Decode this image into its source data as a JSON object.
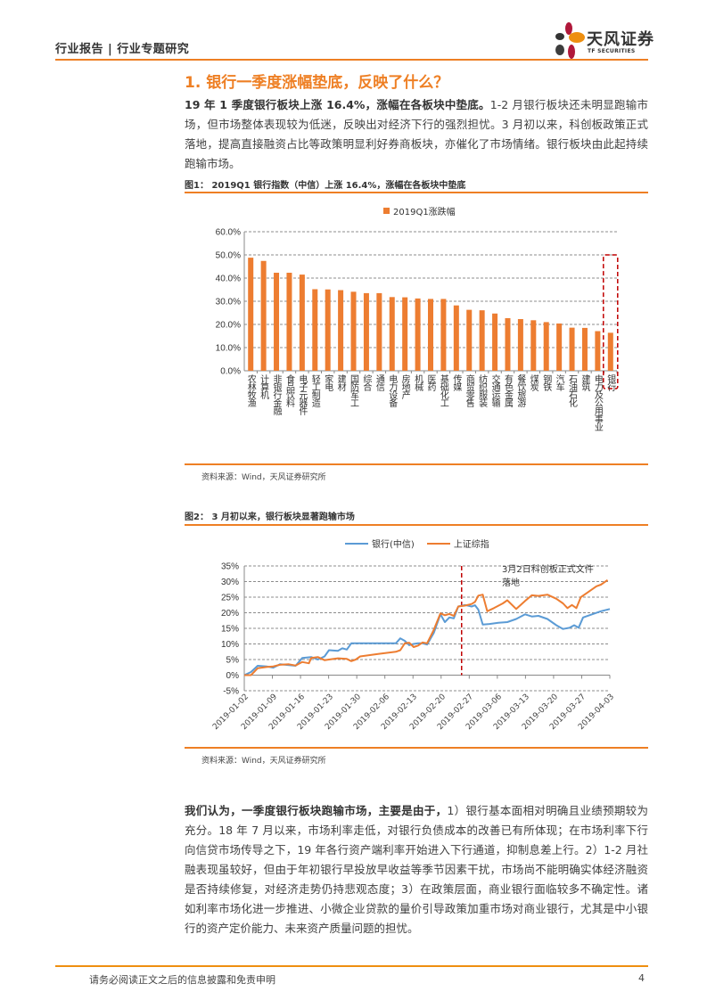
{
  "header": {
    "report_type": "行业报告 | 行业专题研究",
    "logo_cn": "天风证券",
    "logo_en": "TF SECURITIES"
  },
  "section": {
    "title": "1. 银行一季度涨幅垫底，反映了什么？",
    "para1_bold": "19 年 1 季度银行板块上涨 16.4%，涨幅在各板块中垫底。",
    "para1_rest": "1-2 月银行板块还未明显跑输市场，但市场整体表现较为低迷，反映出对经济下行的强烈担忧。3 月初以来，科创板政策正式落地，提高直接融资占比等政策明显利好券商板块，亦催化了市场情绪。银行板块由此起持续跑输市场。",
    "para2_bold": "我们认为，一季度银行板块跑输市场，主要是由于，",
    "para2_rest": "1）银行基本面相对明确且业绩预期较为充分。18 年 7 月以来，市场利率走低，对银行负债成本的改善已有所体现；在市场利率下行向信贷市场传导之下，19 年各行资产端利率开始进入下行通道，抑制息差上行。2）1-2 月社融表现虽较好，但由于年初银行早投放早收益等季节因素干扰，市场尚不能明确实体经济融资是否持续修复，对经济走势仍持悲观态度；3）在政策层面，商业银行面临较多不确定性。诸如利率市场化进一步推进、小微企业贷款的量价引导政策加重市场对商业银行，尤其是中小银行的资产定价能力、未来资产质量问题的担忧。"
  },
  "figure1": {
    "title": "图1： 2019Q1 银行指数（中信）上涨 16.4%，涨幅在各板块中垫底",
    "source": "资料来源：Wind，天风证券研究所"
  },
  "figure2": {
    "title": "图2： 3 月初以来，银行板块显著跑输市场",
    "annotation_line1": "3月2日科创板正式文件",
    "annotation_line2": "落地",
    "source": "资料来源：Wind，天风证券研究所"
  },
  "colors": {
    "accent": "#ee7f24",
    "bank_line": "#5b9bd5",
    "index_line": "#ed7d31",
    "highlight_box": "#c00000"
  },
  "chart_data": [
    {
      "type": "bar",
      "title": "2019Q1 银行指数（中信）上涨 16.4%，涨幅在各板块中垫底",
      "legend": [
        "2019Q1涨跌幅"
      ],
      "legend_position": "top",
      "ylim": [
        0,
        60
      ],
      "yticks": [
        "0.0%",
        "10.0%",
        "20.0%",
        "30.0%",
        "40.0%",
        "50.0%",
        "60.0%"
      ],
      "grid": true,
      "categories": [
        "农林牧渔",
        "计算机",
        "非银行金融",
        "食品饮料",
        "电子元器件",
        "轻工制造",
        "家电",
        "建材",
        "国防军工",
        "综合",
        "通信",
        "电力设备",
        "房地产",
        "机械",
        "医药",
        "基础化工",
        "传媒",
        "商贸零售",
        "纺织服装",
        "交通运输",
        "有色金属",
        "餐饮旅游",
        "煤炭",
        "钢铁",
        "汽车",
        "石油石化",
        "建筑",
        "电力及公用事业",
        "银行"
      ],
      "values": [
        48.8,
        47.4,
        42.3,
        42.3,
        41.5,
        35.2,
        35.1,
        34.8,
        34.1,
        33.5,
        33.5,
        31.8,
        31.7,
        31.2,
        31.0,
        31.0,
        28.2,
        26.3,
        26.1,
        24.7,
        22.7,
        22.3,
        21.8,
        21.0,
        20.4,
        18.6,
        18.5,
        17.1,
        16.4
      ],
      "highlight": "银行"
    },
    {
      "type": "line",
      "title": "3 月初以来，银行板块显著跑输市场",
      "ylim": [
        -5,
        35
      ],
      "yticks": [
        "-5%",
        "0%",
        "5%",
        "10%",
        "15%",
        "20%",
        "25%",
        "30%",
        "35%"
      ],
      "grid": true,
      "legend_position": "top",
      "x_ticks": [
        "2019-01-02",
        "2019-01-09",
        "2019-01-16",
        "2019-01-23",
        "2019-01-30",
        "2019-02-06",
        "2019-02-13",
        "2019-02-20",
        "2019-02-27",
        "2019-03-06",
        "2019-03-13",
        "2019-03-20",
        "2019-03-27",
        "2019-04-03"
      ],
      "vline": {
        "date": "2019-03-02",
        "label": "3月2日科创板正式文件落地"
      },
      "series": [
        {
          "name": "银行(中信)",
          "color": "#5b9bd5",
          "points": [
            [
              0,
              0
            ],
            [
              0.3,
              1.0
            ],
            [
              0.6,
              3.0
            ],
            [
              1.0,
              2.8
            ],
            [
              1.3,
              2.4
            ],
            [
              1.6,
              3.5
            ],
            [
              2.0,
              3.2
            ],
            [
              2.3,
              3.0
            ],
            [
              2.6,
              5.5
            ],
            [
              3.0,
              5.8
            ],
            [
              3.3,
              5.0
            ],
            [
              3.6,
              6.0
            ],
            [
              3.8,
              8.0
            ],
            [
              4.2,
              7.8
            ],
            [
              4.4,
              8.6
            ],
            [
              4.6,
              8.2
            ],
            [
              4.8,
              10.2
            ],
            [
              5.5,
              10.2
            ],
            [
              6.5,
              10.2
            ],
            [
              6.8,
              10.2
            ],
            [
              7.0,
              11.8
            ],
            [
              7.2,
              11.0
            ],
            [
              7.4,
              9.6
            ],
            [
              7.6,
              10.0
            ],
            [
              7.8,
              10.2
            ],
            [
              8.0,
              10.2
            ],
            [
              8.2,
              9.8
            ],
            [
              8.5,
              13.5
            ],
            [
              8.8,
              19.5
            ],
            [
              9.0,
              17.0
            ],
            [
              9.2,
              18.5
            ],
            [
              9.4,
              18.2
            ],
            [
              9.6,
              22.0
            ],
            [
              9.9,
              22.5
            ],
            [
              10.2,
              22.0
            ],
            [
              10.35,
              22.4
            ],
            [
              10.5,
              21.0
            ],
            [
              10.7,
              16.2
            ],
            [
              11.0,
              16.4
            ],
            [
              11.4,
              16.8
            ],
            [
              11.8,
              17.0
            ],
            [
              12.2,
              18.0
            ],
            [
              12.6,
              19.5
            ],
            [
              12.9,
              18.8
            ],
            [
              13.2,
              19.0
            ],
            [
              13.6,
              18.0
            ],
            [
              14.0,
              16.0
            ],
            [
              14.3,
              14.8
            ],
            [
              14.6,
              15.2
            ],
            [
              14.8,
              16.0
            ],
            [
              15.0,
              15.2
            ],
            [
              15.2,
              18.5
            ],
            [
              15.6,
              19.5
            ],
            [
              16.0,
              20.5
            ],
            [
              16.4,
              21.2
            ]
          ]
        },
        {
          "name": "上证综指",
          "color": "#ed7d31",
          "points": [
            [
              0,
              0
            ],
            [
              0.3,
              0
            ],
            [
              0.6,
              2.2
            ],
            [
              1.0,
              2.6
            ],
            [
              1.3,
              2.8
            ],
            [
              1.6,
              3.3
            ],
            [
              2.0,
              3.5
            ],
            [
              2.3,
              3.1
            ],
            [
              2.6,
              4.2
            ],
            [
              2.9,
              3.8
            ],
            [
              3.0,
              5.5
            ],
            [
              3.3,
              5.8
            ],
            [
              3.6,
              4.8
            ],
            [
              3.8,
              5.0
            ],
            [
              4.2,
              5.4
            ],
            [
              4.6,
              5.2
            ],
            [
              4.8,
              4.5
            ],
            [
              5.0,
              5.0
            ],
            [
              5.2,
              6.0
            ],
            [
              6.0,
              6.8
            ],
            [
              6.8,
              7.5
            ],
            [
              7.0,
              8.0
            ],
            [
              7.2,
              10.2
            ],
            [
              7.4,
              10.4
            ],
            [
              7.6,
              9.0
            ],
            [
              7.8,
              9.5
            ],
            [
              8.0,
              10.5
            ],
            [
              8.2,
              10.2
            ],
            [
              8.5,
              14.5
            ],
            [
              8.8,
              19.8
            ],
            [
              9.0,
              19.2
            ],
            [
              9.2,
              19.6
            ],
            [
              9.4,
              19.0
            ],
            [
              9.6,
              22.0
            ],
            [
              9.9,
              22.3
            ],
            [
              10.2,
              22.8
            ],
            [
              10.35,
              23.5
            ],
            [
              10.5,
              25.5
            ],
            [
              10.7,
              25.8
            ],
            [
              10.9,
              20.5
            ],
            [
              11.2,
              21.5
            ],
            [
              11.6,
              23.0
            ],
            [
              11.8,
              24.0
            ],
            [
              12.2,
              21.2
            ],
            [
              12.6,
              23.8
            ],
            [
              12.9,
              25.6
            ],
            [
              13.2,
              25.4
            ],
            [
              13.6,
              25.8
            ],
            [
              14.0,
              24.5
            ],
            [
              14.3,
              23.0
            ],
            [
              14.5,
              21.5
            ],
            [
              14.7,
              22.5
            ],
            [
              14.9,
              21.5
            ],
            [
              15.1,
              25.0
            ],
            [
              15.4,
              26.5
            ],
            [
              15.8,
              28.5
            ],
            [
              16.0,
              29.0
            ],
            [
              16.3,
              30.5
            ]
          ]
        }
      ]
    }
  ],
  "footer": {
    "disclaimer": "请务必阅读正文之后的信息披露和免责申明",
    "page_number": "4"
  }
}
